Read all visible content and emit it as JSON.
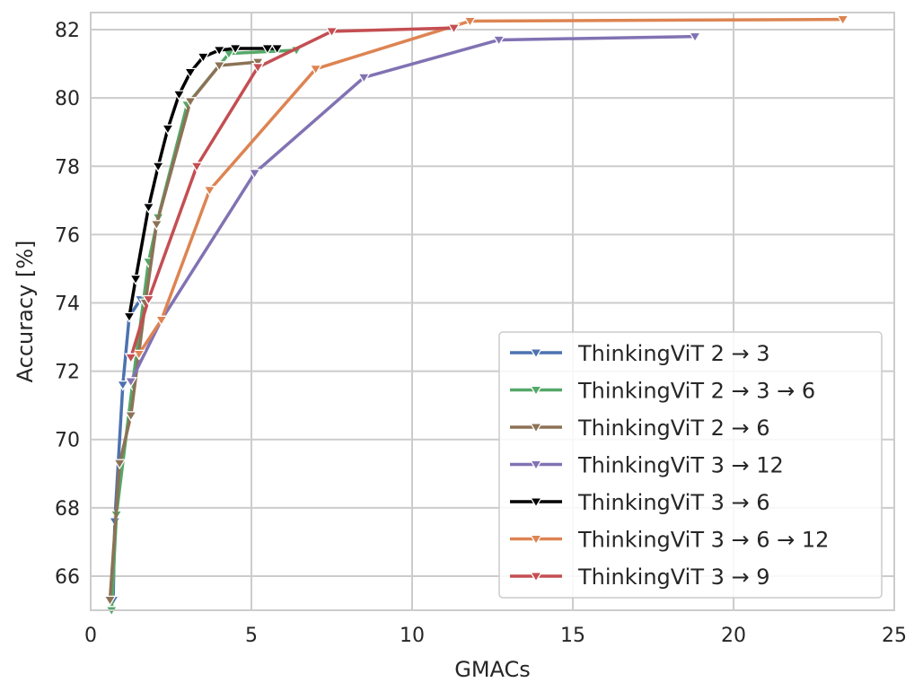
{
  "chart_data": {
    "type": "line",
    "title": "",
    "xlabel": "GMACs",
    "ylabel": "Accuracy [%]",
    "xlim": [
      0,
      25
    ],
    "ylim": [
      65,
      82.5
    ],
    "xticks": [
      0,
      5,
      10,
      15,
      20,
      25
    ],
    "yticks": [
      66,
      68,
      70,
      72,
      74,
      76,
      78,
      80,
      82
    ],
    "grid": true,
    "legend_position": "bottom-right",
    "marker": "triangle-down",
    "series": [
      {
        "name": "ThinkingViT 2 → 3",
        "color": "#4c72b0",
        "points": [
          [
            0.7,
            65.3
          ],
          [
            0.75,
            67.6
          ],
          [
            1.0,
            71.6
          ],
          [
            1.2,
            73.6
          ],
          [
            1.55,
            74.1
          ],
          [
            1.75,
            74.1
          ]
        ]
      },
      {
        "name": "ThinkingViT 2 → 3 → 6",
        "color": "#55a868",
        "points": [
          [
            0.65,
            65.0
          ],
          [
            0.8,
            67.8
          ],
          [
            1.3,
            71.6
          ],
          [
            1.8,
            75.2
          ],
          [
            2.1,
            76.5
          ],
          [
            3.0,
            79.8
          ],
          [
            4.3,
            81.3
          ],
          [
            6.4,
            81.4
          ]
        ]
      },
      {
        "name": "ThinkingViT 2 → 6",
        "color": "#8c7256",
        "points": [
          [
            0.6,
            65.3
          ],
          [
            0.9,
            69.3
          ],
          [
            1.25,
            70.7
          ],
          [
            1.7,
            74.0
          ],
          [
            2.05,
            76.3
          ],
          [
            3.1,
            79.9
          ],
          [
            4.0,
            80.95
          ],
          [
            5.2,
            81.05
          ]
        ]
      },
      {
        "name": "ThinkingViT 3 → 12",
        "color": "#8172b3",
        "points": [
          [
            1.25,
            71.7
          ],
          [
            2.2,
            73.5
          ],
          [
            5.1,
            77.8
          ],
          [
            8.5,
            80.6
          ],
          [
            12.7,
            81.7
          ],
          [
            18.8,
            81.8
          ]
        ]
      },
      {
        "name": "ThinkingViT 3 → 6",
        "color": "#000000",
        "points": [
          [
            1.2,
            73.6
          ],
          [
            1.4,
            74.7
          ],
          [
            1.8,
            76.8
          ],
          [
            2.1,
            78.0
          ],
          [
            2.4,
            79.1
          ],
          [
            2.75,
            80.1
          ],
          [
            3.1,
            80.75
          ],
          [
            3.5,
            81.2
          ],
          [
            4.0,
            81.4
          ],
          [
            4.5,
            81.45
          ],
          [
            5.5,
            81.45
          ],
          [
            5.8,
            81.45
          ]
        ]
      },
      {
        "name": "ThinkingViT 3 → 6 → 12",
        "color": "#dd8452",
        "points": [
          [
            1.5,
            72.5
          ],
          [
            2.2,
            73.5
          ],
          [
            3.7,
            77.3
          ],
          [
            7.0,
            80.85
          ],
          [
            11.8,
            82.25
          ],
          [
            23.4,
            82.3
          ]
        ]
      },
      {
        "name": "ThinkingViT 3 → 9",
        "color": "#c44e52",
        "points": [
          [
            1.25,
            72.4
          ],
          [
            1.8,
            74.1
          ],
          [
            3.3,
            78.0
          ],
          [
            5.2,
            80.9
          ],
          [
            7.5,
            81.95
          ],
          [
            11.3,
            82.05
          ]
        ]
      }
    ]
  }
}
